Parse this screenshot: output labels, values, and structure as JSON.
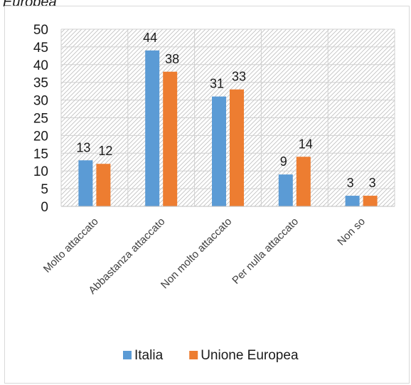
{
  "page": {
    "heading_fragment": "Europea"
  },
  "chart_data": {
    "type": "bar",
    "title": "",
    "xlabel": "",
    "ylabel": "",
    "categories": [
      "Molto attaccato",
      "Abbastanza attaccato",
      "Non molto attaccato",
      "Per nulla attaccato",
      "Non so"
    ],
    "series": [
      {
        "name": "Italia",
        "values": [
          13,
          44,
          31,
          9,
          3
        ],
        "color": "#5b9bd5"
      },
      {
        "name": "Unione Europea",
        "values": [
          12,
          38,
          33,
          14,
          3
        ],
        "color": "#ed7d31"
      }
    ],
    "ylim": [
      0,
      50
    ],
    "yticks": [
      0,
      5,
      10,
      15,
      20,
      25,
      30,
      35,
      40,
      45,
      50
    ],
    "grid": true,
    "data_labels": true,
    "legend": "bottom"
  }
}
